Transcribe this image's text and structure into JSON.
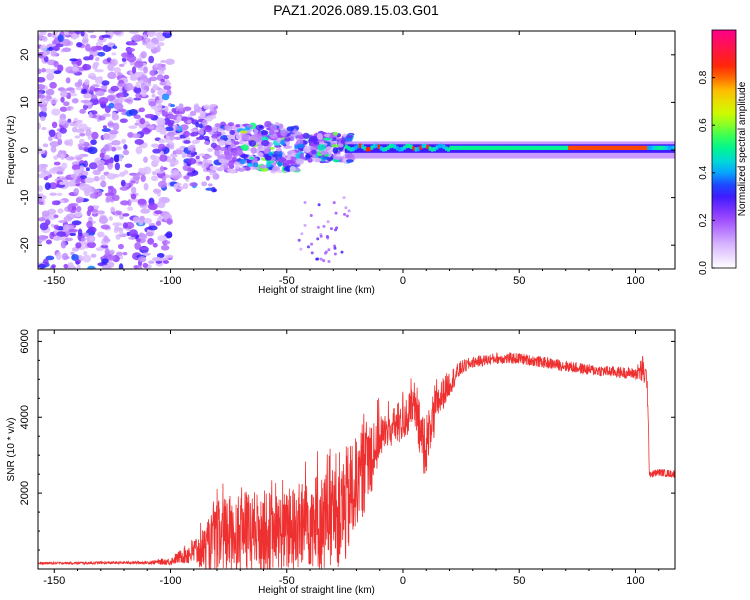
{
  "page_title": "PAZ1.2026.089.15.03.G01",
  "colors": {
    "snr_line": "#ee3030",
    "axis": "#000000",
    "colorbar_stops": [
      "#ff0088",
      "#ff0000",
      "#ff8800",
      "#ffff00",
      "#00ff00",
      "#00ffff",
      "#0000ff",
      "#9900ff",
      "#ffffff"
    ]
  },
  "chart_data": [
    {
      "id": "spectrogram",
      "type": "heatmap",
      "title": "PAZ1.2026.089.15.03.G01",
      "xlabel": "Height of straight line (km)",
      "ylabel": "Frequency (Hz)",
      "xlim": [
        -157,
        117
      ],
      "ylim": [
        -25,
        25
      ],
      "xticks": [
        -150,
        -100,
        -50,
        0,
        50,
        100
      ],
      "xtick_labels": [
        "-150",
        "-100",
        "-50",
        "0",
        "50",
        "100"
      ],
      "yticks": [
        -20,
        -10,
        0,
        10,
        20
      ],
      "ytick_labels": [
        "-20",
        "-10",
        "0",
        "10",
        "20"
      ],
      "colorbar": {
        "label": "Normalized spectral amplitude",
        "range": [
          0,
          1
        ],
        "ticks": [
          0.0,
          0.2,
          0.4,
          0.6,
          0.8
        ],
        "tick_labels": [
          "0.0",
          "0.2",
          "0.4",
          "0.6",
          "0.8"
        ]
      },
      "regions": [
        {
          "name": "noise",
          "x_range": [
            -157,
            -100
          ],
          "freq_spread_hz": 25,
          "amplitude": [
            0.05,
            0.25
          ]
        },
        {
          "name": "transition",
          "x_range": [
            -100,
            -25
          ],
          "freq_spread_hz": 5,
          "amplitude": [
            0.1,
            0.6
          ]
        },
        {
          "name": "tone",
          "x_range": [
            -25,
            117
          ],
          "center_freq_hz": [
            0.2,
            0.6
          ],
          "amplitude": [
            0.4,
            0.95
          ]
        }
      ]
    },
    {
      "id": "snr",
      "type": "line",
      "title": "",
      "xlabel": "Height of straight line (km)",
      "ylabel": "SNR (10 * v/v)",
      "xlim": [
        -157,
        117
      ],
      "ylim": [
        0,
        6300
      ],
      "xticks": [
        -150,
        -100,
        -50,
        0,
        50,
        100
      ],
      "xtick_labels": [
        "-150",
        "-100",
        "-50",
        "0",
        "50",
        "100"
      ],
      "yticks": [
        2000,
        4000,
        6000
      ],
      "ytick_labels": [
        "2000",
        "4000",
        "6000"
      ],
      "series": [
        {
          "name": "SNR",
          "x": [
            -157,
            -110,
            -100,
            -95,
            -90,
            -85,
            -80,
            -75,
            -70,
            -65,
            -60,
            -55,
            -50,
            -45,
            -40,
            -35,
            -30,
            -25,
            -20,
            -15,
            -10,
            -5,
            0,
            5,
            8,
            10,
            15,
            20,
            25,
            30,
            40,
            50,
            60,
            70,
            80,
            90,
            100,
            103,
            105,
            106,
            107,
            110,
            117
          ],
          "values": [
            150,
            170,
            200,
            350,
            450,
            550,
            800,
            900,
            1000,
            950,
            1000,
            1000,
            950,
            1100,
            1300,
            1200,
            1500,
            1600,
            2300,
            2900,
            3500,
            3700,
            3900,
            4300,
            3400,
            3300,
            4400,
            4900,
            5300,
            5450,
            5550,
            5550,
            5450,
            5350,
            5250,
            5200,
            5150,
            5250,
            5000,
            2550,
            2500,
            2550,
            2500
          ],
          "noise_amplitude": [
            30,
            40,
            100,
            200,
            400,
            600,
            1000,
            1100,
            1100,
            1100,
            1100,
            1000,
            1100,
            1200,
            1300,
            1300,
            1500,
            1600,
            1200,
            1300,
            600,
            500,
            600,
            500,
            900,
            800,
            500,
            350,
            200,
            150,
            150,
            150,
            150,
            150,
            150,
            150,
            150,
            400,
            300,
            150,
            100,
            100,
            100
          ]
        }
      ]
    }
  ]
}
